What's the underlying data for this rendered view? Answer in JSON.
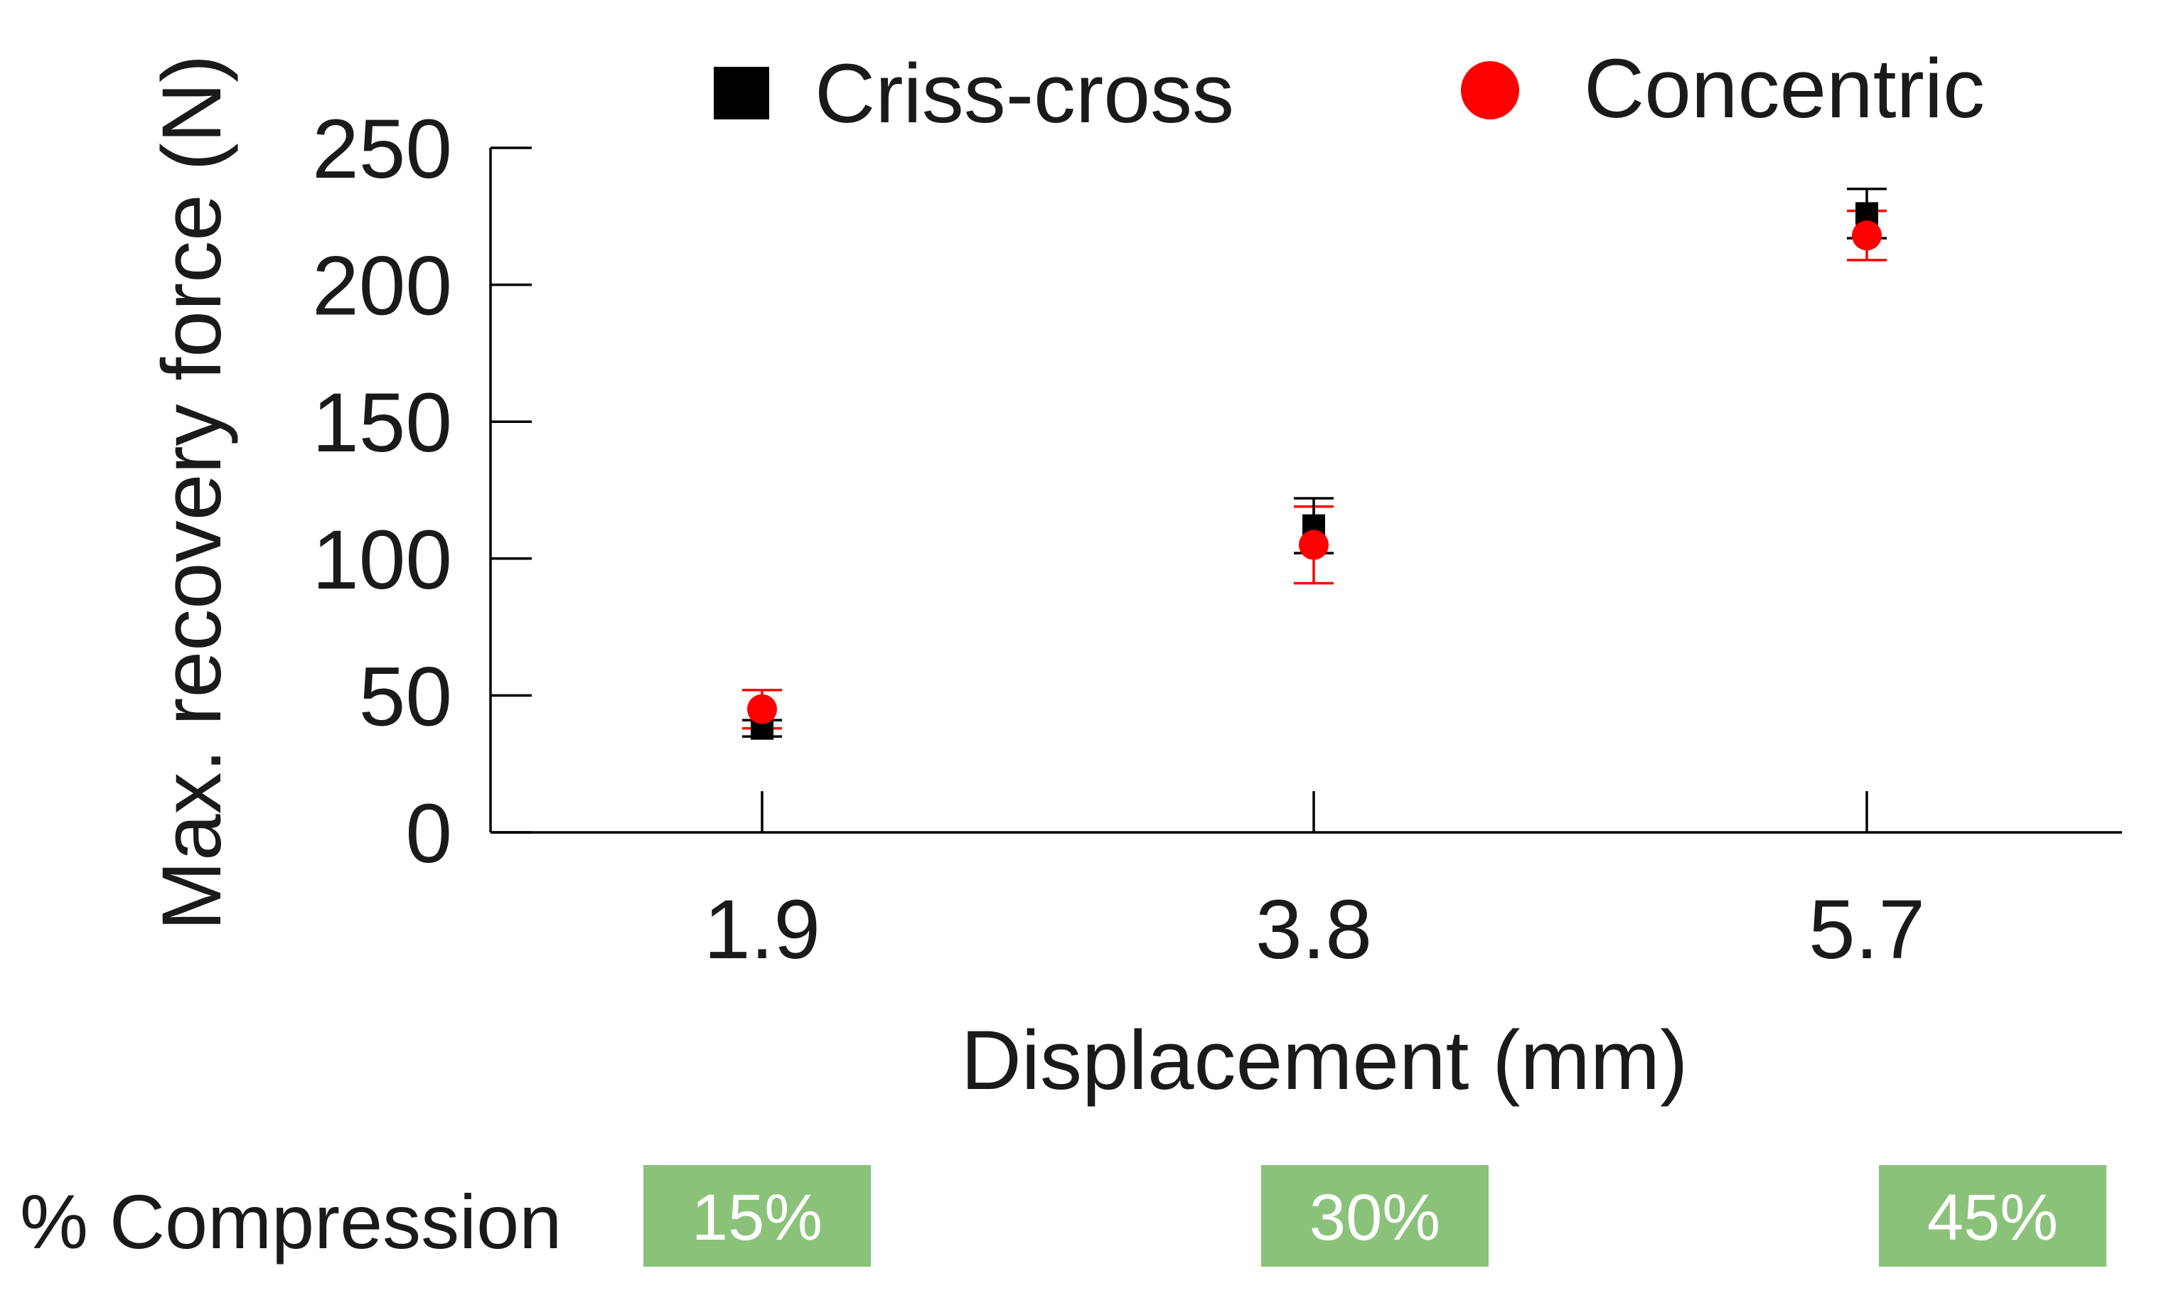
{
  "chart_data": {
    "type": "scatter",
    "title": "",
    "xlabel": "Displacement (mm)",
    "ylabel": "Max. recovery force (N)",
    "categories": [
      "1.9",
      "3.8",
      "5.7"
    ],
    "ylim": [
      0,
      250
    ],
    "yticks": [
      "0",
      "50",
      "100",
      "150",
      "200",
      "250"
    ],
    "grid": false,
    "legend_position": "top",
    "series": [
      {
        "name": "Criss-cross",
        "marker": "square",
        "color": "#000000",
        "values": [
          38,
          112,
          226
        ],
        "errors": [
          3,
          10,
          9
        ]
      },
      {
        "name": "Concentric",
        "marker": "circle",
        "color": "#ff0000",
        "values": [
          45,
          105,
          218
        ],
        "errors": [
          7,
          14,
          9
        ]
      }
    ],
    "compression": {
      "label": "% Compression",
      "badge_color": "#8bc27a",
      "values": [
        "15%",
        "30%",
        "45%"
      ]
    }
  }
}
